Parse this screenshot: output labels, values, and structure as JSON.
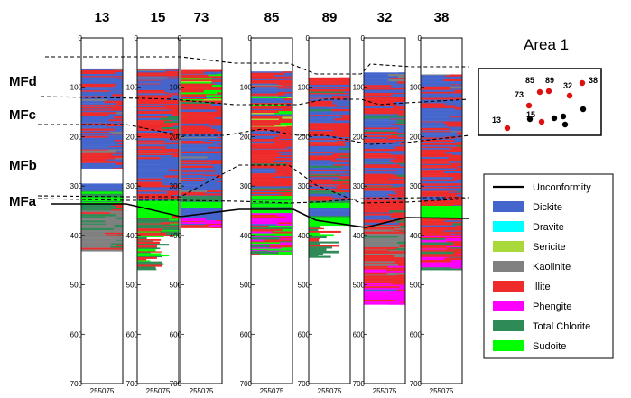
{
  "colors": {
    "dickite": "#4466cc",
    "dravite": "#00ffff",
    "sericite": "#a8d83a",
    "kaolinite": "#808080",
    "illite": "#ee2a2a",
    "phengite": "#ff00ff",
    "total_chlorite": "#2e8b57",
    "sudoite": "#00ff00",
    "unconformity": "#000000",
    "marker_red": "#dd1111",
    "marker_black": "#000000"
  },
  "y_ticks": [
    "0",
    "100",
    "200",
    "300",
    "400",
    "500",
    "600",
    "700"
  ],
  "x_tick_text": "255075",
  "units": [
    "MFd",
    "MFc",
    "MFb",
    "MFa"
  ],
  "drillholes": [
    {
      "id": "13",
      "collar": 62,
      "eoh": 432,
      "intervals": [
        [
          62,
          165,
          "dickite_mix"
        ],
        [
          165,
          265,
          "dickite_mix"
        ],
        [
          265,
          295,
          "white"
        ],
        [
          295,
          310,
          "dickite"
        ],
        [
          310,
          335,
          "sudoite"
        ],
        [
          335,
          432,
          "kaolinite_mix"
        ]
      ]
    },
    {
      "id": "15",
      "collar": 62,
      "eoh": 470,
      "intervals": [
        [
          62,
          120,
          "dickite_mix"
        ],
        [
          120,
          200,
          "illite_mix"
        ],
        [
          200,
          310,
          "dickite_mix"
        ],
        [
          310,
          330,
          "illite_mix"
        ],
        [
          330,
          360,
          "sudoite"
        ],
        [
          360,
          400,
          "chlorite_mix"
        ],
        [
          400,
          470,
          "sparse"
        ]
      ]
    },
    {
      "id": "73",
      "collar": 65,
      "eoh": 385,
      "intervals": [
        [
          65,
          130,
          "illite_green"
        ],
        [
          130,
          195,
          "illite_mix"
        ],
        [
          195,
          320,
          "dickite_mix"
        ],
        [
          320,
          345,
          "sudoite"
        ],
        [
          345,
          365,
          "dickite"
        ],
        [
          365,
          385,
          "phengite"
        ]
      ]
    },
    {
      "id": "85",
      "collar": 68,
      "eoh": 440,
      "intervals": [
        [
          68,
          120,
          "dickite_mix"
        ],
        [
          120,
          180,
          "illite_green"
        ],
        [
          180,
          320,
          "illite_mix"
        ],
        [
          320,
          355,
          "sudoite"
        ],
        [
          355,
          380,
          "phengite"
        ],
        [
          380,
          440,
          "mixed_low"
        ]
      ]
    },
    {
      "id": "89",
      "collar": 80,
      "eoh": 445,
      "intervals": [
        [
          80,
          330,
          "illite_dickite"
        ],
        [
          330,
          345,
          "sudoite"
        ],
        [
          345,
          360,
          "dickite"
        ],
        [
          360,
          380,
          "sudoite"
        ],
        [
          380,
          445,
          "sparse"
        ]
      ]
    },
    {
      "id": "32",
      "collar": 70,
      "eoh": 540,
      "intervals": [
        [
          70,
          120,
          "dickite_mix"
        ],
        [
          120,
          220,
          "illite_dickite"
        ],
        [
          220,
          310,
          "illite_dickite"
        ],
        [
          310,
          380,
          "illite_mix"
        ],
        [
          380,
          430,
          "kaolinite_mix"
        ],
        [
          430,
          500,
          "illite_kaol"
        ],
        [
          500,
          540,
          "phengite"
        ]
      ]
    },
    {
      "id": "38",
      "collar": 74,
      "eoh": 470,
      "intervals": [
        [
          74,
          200,
          "dickite_mix"
        ],
        [
          200,
          340,
          "illite_dickite"
        ],
        [
          340,
          365,
          "sudoite"
        ],
        [
          365,
          400,
          "illite_mix"
        ],
        [
          400,
          470,
          "phengite_mix"
        ]
      ]
    }
  ],
  "area": {
    "title": "Area 1",
    "holes": [
      {
        "label": "13",
        "red": true
      },
      {
        "label": "15",
        "red": true
      },
      {
        "label": "73",
        "red": true
      },
      {
        "label": "85",
        "red": true
      },
      {
        "label": "89",
        "red": true
      },
      {
        "label": "32",
        "red": true
      },
      {
        "label": "38",
        "red": true
      },
      {
        "label": "",
        "red": false
      },
      {
        "label": "",
        "red": false
      },
      {
        "label": "",
        "red": false
      },
      {
        "label": "",
        "red": false
      },
      {
        "label": "",
        "red": false
      }
    ]
  },
  "legend": [
    {
      "key": "unconformity",
      "label": "Unconformity",
      "type": "line"
    },
    {
      "key": "dickite",
      "label": "Dickite",
      "type": "box"
    },
    {
      "key": "dravite",
      "label": "Dravite",
      "type": "box"
    },
    {
      "key": "sericite",
      "label": "Sericite",
      "type": "box"
    },
    {
      "key": "kaolinite",
      "label": "Kaolinite",
      "type": "box"
    },
    {
      "key": "illite",
      "label": "Illite",
      "type": "box"
    },
    {
      "key": "phengite",
      "label": "Phengite",
      "type": "box"
    },
    {
      "key": "total_chlorite",
      "label": "Total Chlorite",
      "type": "box"
    },
    {
      "key": "sudoite",
      "label": "Sudoite",
      "type": "box"
    }
  ]
}
